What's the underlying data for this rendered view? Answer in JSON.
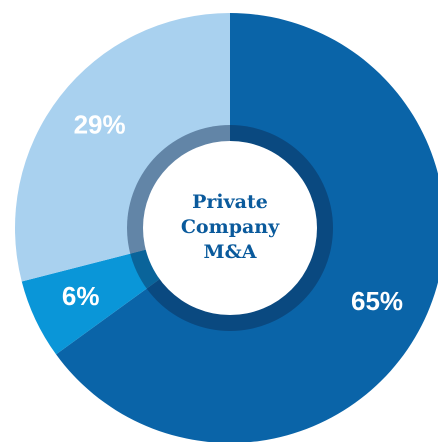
{
  "chart_data": {
    "type": "donut",
    "title": "Private Company M&A",
    "values": [
      65,
      6,
      29
    ],
    "value_labels": [
      "65%",
      "6%",
      "29%"
    ],
    "colors": [
      "#0a64a8",
      "#0a96d8",
      "#a9d1ef"
    ]
  }
}
